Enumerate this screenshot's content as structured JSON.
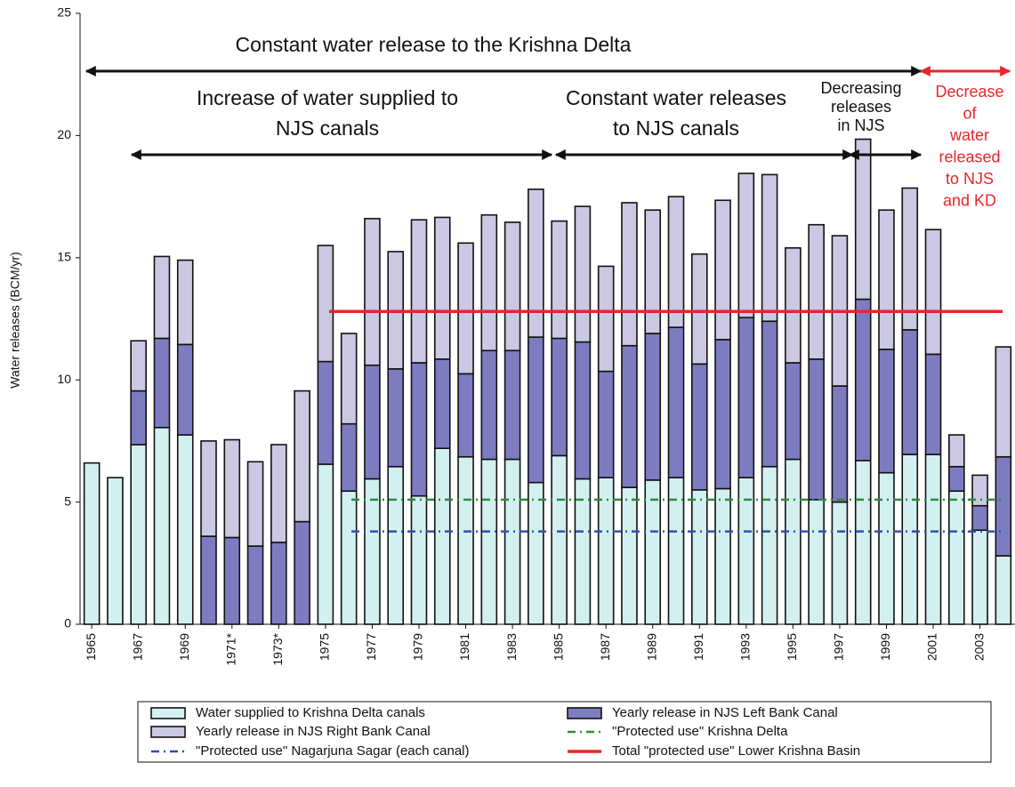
{
  "chart_data": {
    "type": "bar",
    "stacked": true,
    "ylabel": "Water releases (BCM/yr)",
    "ylim": [
      0,
      25
    ],
    "yticks": [
      0,
      5,
      10,
      15,
      20,
      25
    ],
    "categories": [
      "1965",
      null,
      "1967",
      null,
      "1969",
      null,
      "1971*",
      null,
      "1973*",
      null,
      "1975",
      null,
      "1977",
      null,
      "1979",
      null,
      "1981",
      null,
      "1983",
      null,
      "1985",
      null,
      "1987",
      null,
      "1989",
      null,
      "1991",
      null,
      "1993",
      null,
      "1995",
      null,
      "1997",
      null,
      "1999",
      null,
      "2001",
      null,
      "2003",
      null
    ],
    "series": [
      {
        "name": "Water supplied to Krishna Delta canals",
        "color": "#d3f0f0",
        "values": [
          6.6,
          6.0,
          7.35,
          8.05,
          7.75,
          0,
          0,
          0,
          0,
          0,
          6.55,
          5.45,
          5.95,
          6.45,
          5.25,
          7.2,
          6.85,
          6.75,
          6.75,
          5.8,
          6.9,
          5.95,
          6.0,
          5.6,
          5.9,
          6.0,
          5.5,
          5.55,
          6.0,
          6.45,
          6.75,
          5.1,
          5.0,
          6.7,
          6.2,
          6.95,
          6.95,
          5.45,
          3.85,
          2.8
        ]
      },
      {
        "name": "Yearly release in NJS Left Bank Canal",
        "color": "#7e7cc0",
        "values": [
          0,
          0,
          2.2,
          3.65,
          3.7,
          3.6,
          3.55,
          3.2,
          3.35,
          4.2,
          4.2,
          2.75,
          4.65,
          4.0,
          5.45,
          3.65,
          3.4,
          4.45,
          4.45,
          5.95,
          4.8,
          5.6,
          4.35,
          5.8,
          6.0,
          6.15,
          5.15,
          6.1,
          6.55,
          5.95,
          3.95,
          5.75,
          4.75,
          6.6,
          5.05,
          5.1,
          4.1,
          1.0,
          1.0,
          4.05
        ]
      },
      {
        "name": "Yearly release in NJS Right Bank Canal",
        "color": "#cbc8e3",
        "values": [
          0,
          0,
          2.05,
          3.35,
          3.45,
          3.9,
          4.0,
          3.45,
          4.0,
          5.35,
          4.75,
          3.7,
          6.0,
          4.8,
          5.85,
          5.8,
          5.35,
          5.55,
          5.25,
          6.05,
          4.8,
          5.55,
          4.3,
          5.85,
          5.05,
          5.35,
          4.5,
          5.7,
          5.9,
          6.0,
          4.7,
          5.5,
          6.15,
          6.55,
          5.7,
          5.8,
          5.1,
          1.3,
          1.25,
          4.5
        ]
      }
    ],
    "reference_lines": [
      {
        "name": "\"Protected use\" Krishna Delta",
        "color": "#2e8b3c",
        "value": 5.1,
        "style": "dashdot"
      },
      {
        "name": "\"Protected use\" Nagarjuna Sagar (each canal)",
        "color": "#3050b0",
        "value": 3.8,
        "style": "dashdot"
      },
      {
        "name": "Total \"protected use\" Lower Krishna Basin",
        "color": "#e8262a",
        "value": 12.8,
        "style": "solid"
      }
    ],
    "annotations": [
      {
        "lines": [
          "Constant water release to the Krishna Delta"
        ],
        "color": "#111111"
      },
      {
        "lines": [
          "Increase of water supplied to",
          "NJS canals"
        ],
        "color": "#111111"
      },
      {
        "lines": [
          "Constant water releases",
          "to NJS canals"
        ],
        "color": "#111111"
      },
      {
        "lines": [
          "Decreasing",
          "releases",
          "in NJS"
        ],
        "color": "#111111"
      },
      {
        "lines": [
          "Decrease",
          "of",
          "water",
          "released",
          "to NJS",
          "and KD"
        ],
        "color": "#e8262a"
      }
    ]
  }
}
